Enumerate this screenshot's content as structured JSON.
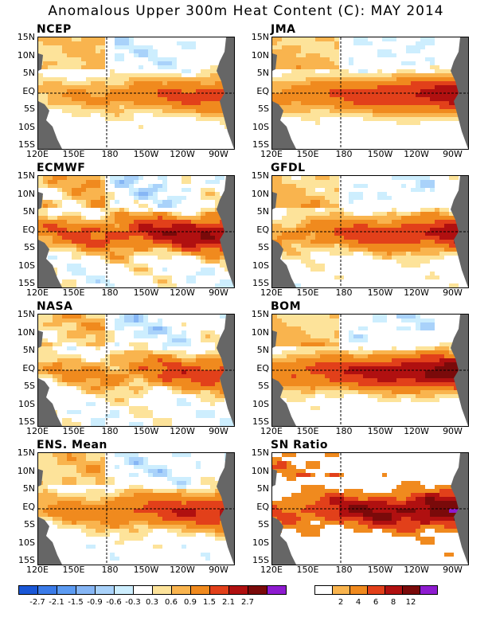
{
  "title": "Anomalous Upper 300m Heat Content (C): MAY 2014",
  "chart_data": [
    {
      "type": "heatmap",
      "title": "NCEP",
      "profile": [
        0.6,
        1.0,
        0.3
      ]
    },
    {
      "type": "heatmap",
      "title": "JMA",
      "profile": [
        1.0,
        1.3,
        0.2
      ]
    },
    {
      "type": "heatmap",
      "title": "ECMWF",
      "profile": [
        1.1,
        1.4,
        0.7
      ]
    },
    {
      "type": "heatmap",
      "title": "GFDL",
      "profile": [
        0.9,
        1.2,
        0.4
      ]
    },
    {
      "type": "heatmap",
      "title": "NASA",
      "profile": [
        0.6,
        1.1,
        0.6
      ]
    },
    {
      "type": "heatmap",
      "title": "BOM",
      "profile": [
        1.3,
        1.5,
        0.3
      ]
    },
    {
      "type": "heatmap",
      "title": "ENS. Mean",
      "profile": [
        0.8,
        1.2,
        0.4
      ]
    },
    {
      "type": "heatmap",
      "title": "SN Ratio",
      "profile": [
        4,
        7,
        2
      ]
    }
  ],
  "axes": {
    "y_ticks": [
      "15N",
      "10N",
      "5N",
      "EQ",
      "5S",
      "10S",
      "15S"
    ],
    "x_ticks": [
      "120E",
      "150E",
      "180",
      "150W",
      "120W",
      "90W"
    ]
  },
  "colorbar_anomaly": {
    "labels": [
      "-2.7",
      "-2.1",
      "-1.5",
      "-0.9",
      "-0.6",
      "-0.3",
      "0.3",
      "0.6",
      "0.9",
      "1.5",
      "2.1",
      "2.7"
    ],
    "colors": [
      "#1a57d6",
      "#3b7be8",
      "#5c9bf2",
      "#86b6f5",
      "#a9d2fa",
      "#cdeefe",
      "#ffffff",
      "#fde39a",
      "#f9b44e",
      "#f08a1e",
      "#e2401a",
      "#b01010",
      "#7a0a0a",
      "#8e1bd0"
    ]
  },
  "colorbar_sn": {
    "labels": [
      "2",
      "4",
      "6",
      "8",
      "12"
    ],
    "colors": [
      "#ffffff",
      "#f9b44e",
      "#f08a1e",
      "#e2401a",
      "#b01010",
      "#7a0a0a",
      "#8e1bd0"
    ]
  },
  "land_color": "#666666"
}
